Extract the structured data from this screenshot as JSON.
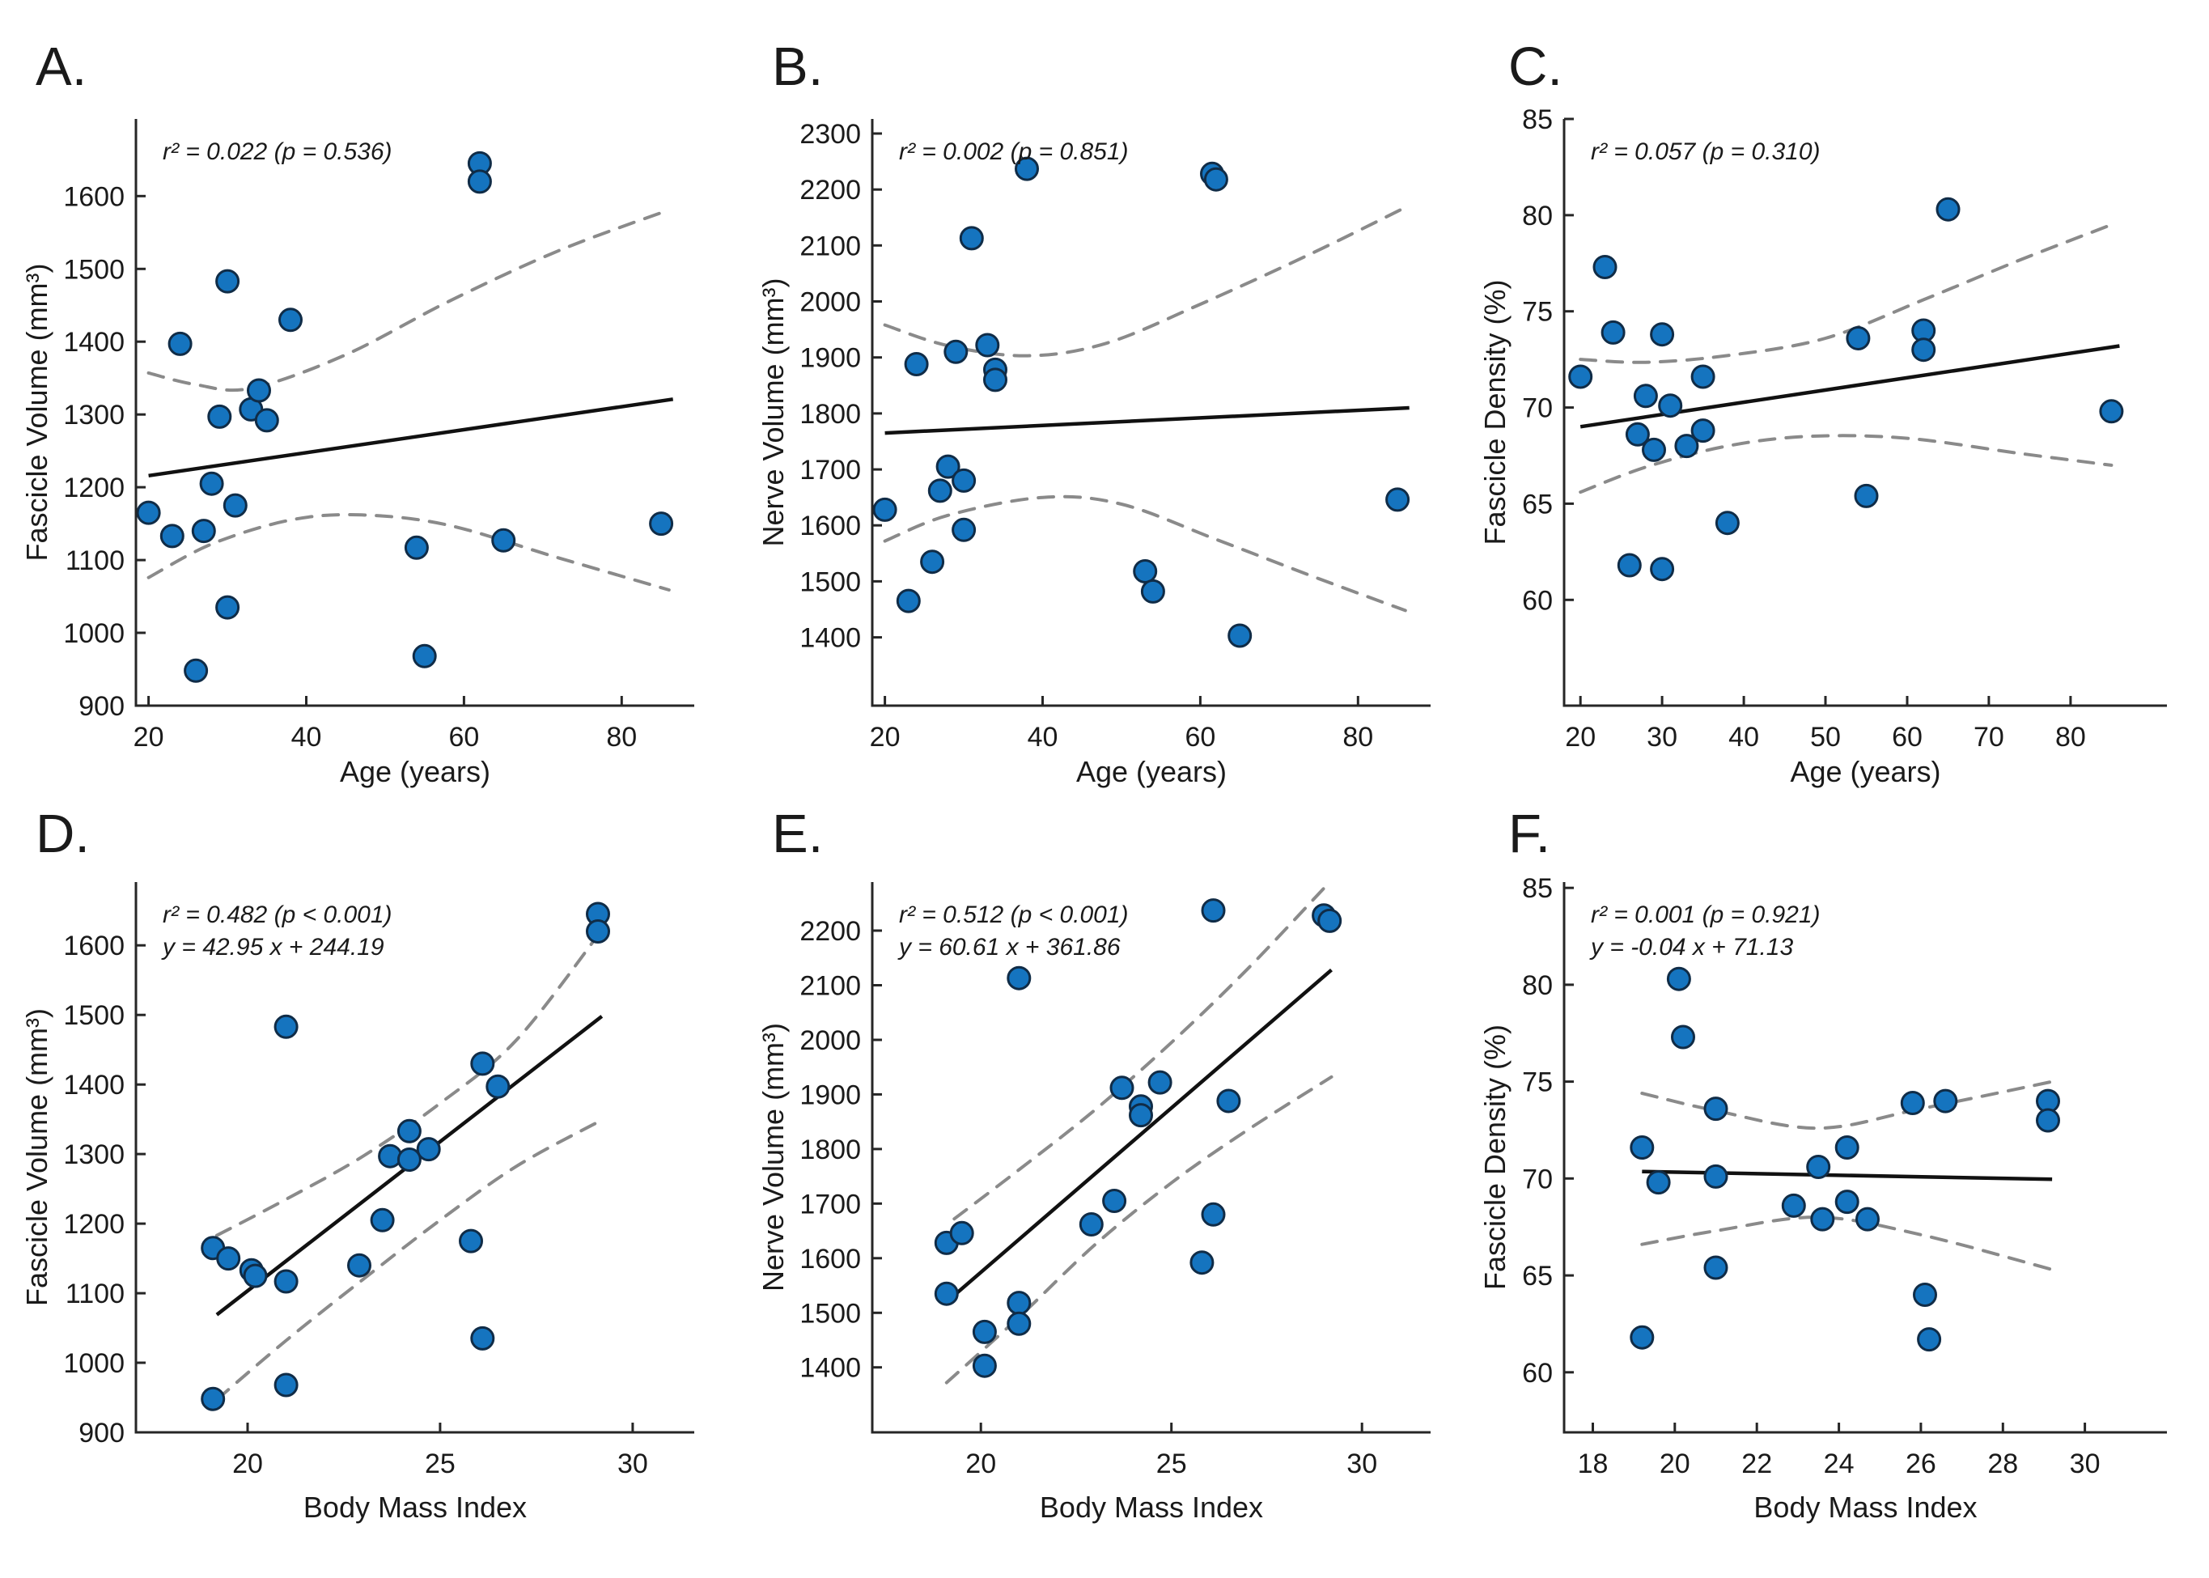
{
  "style": {
    "background": "#ffffff",
    "marker_fill": "#1574bf",
    "marker_edge": "#102c47",
    "fit_line_color": "#111111",
    "ci_line_color": "#8a8a8a",
    "axis_color": "#262626",
    "text_color": "#1a1a1a"
  },
  "chart_data": [
    {
      "type": "scatter",
      "panel_letter": "A.",
      "annotation_lines": [
        "r² = 0.022 (p = 0.536)"
      ],
      "xlabel": "Age (years)",
      "ylabel": "Fascicle Volume (mm³)",
      "xlim": [
        18.4,
        89.2
      ],
      "ylim": [
        900,
        1706
      ],
      "xticks": [
        20,
        40,
        60,
        80
      ],
      "yticks": [
        900,
        1000,
        1100,
        1200,
        1300,
        1400,
        1500,
        1600
      ],
      "points": [
        [
          20,
          1165
        ],
        [
          23,
          1133
        ],
        [
          24,
          1397
        ],
        [
          26,
          948
        ],
        [
          27,
          1140
        ],
        [
          28,
          1205
        ],
        [
          29,
          1297
        ],
        [
          30,
          1483
        ],
        [
          30,
          1035
        ],
        [
          31,
          1175
        ],
        [
          33,
          1307
        ],
        [
          34,
          1333
        ],
        [
          35,
          1292
        ],
        [
          38,
          1430
        ],
        [
          54,
          1117
        ],
        [
          55,
          968
        ],
        [
          62,
          1645
        ],
        [
          62,
          1620
        ],
        [
          65,
          1127
        ],
        [
          85,
          1150
        ]
      ],
      "fit_line": {
        "x": [
          20,
          86.5
        ],
        "y": [
          1216,
          1321
        ]
      },
      "ci_upper": [
        [
          20,
          1357
        ],
        [
          26,
          1341
        ],
        [
          33,
          1336
        ],
        [
          45,
          1382
        ],
        [
          58,
          1455
        ],
        [
          72,
          1525
        ],
        [
          86,
          1581
        ]
      ],
      "ci_lower": [
        [
          20,
          1076
        ],
        [
          28,
          1122
        ],
        [
          38,
          1155
        ],
        [
          47,
          1162
        ],
        [
          58,
          1148
        ],
        [
          72,
          1103
        ],
        [
          86,
          1059
        ]
      ]
    },
    {
      "type": "scatter",
      "panel_letter": "B.",
      "annotation_lines": [
        "r² = 0.002 (p = 0.851)"
      ],
      "xlabel": "Age (years)",
      "ylabel": "Nerve Volume (mm³)",
      "xlim": [
        18.4,
        89.2
      ],
      "ylim": [
        1278,
        2326
      ],
      "xticks": [
        20,
        40,
        60,
        80
      ],
      "yticks": [
        1400,
        1500,
        1600,
        1700,
        1800,
        1900,
        2000,
        2100,
        2200,
        2300
      ],
      "points": [
        [
          20,
          1628
        ],
        [
          23,
          1465
        ],
        [
          24,
          1888
        ],
        [
          26,
          1535
        ],
        [
          27,
          1662
        ],
        [
          28,
          1705
        ],
        [
          29,
          1910
        ],
        [
          30,
          1680
        ],
        [
          30,
          1592
        ],
        [
          31,
          2113
        ],
        [
          33,
          1922
        ],
        [
          34,
          1878
        ],
        [
          34,
          1860
        ],
        [
          38,
          2237
        ],
        [
          53,
          1518
        ],
        [
          54,
          1482
        ],
        [
          61.5,
          2228
        ],
        [
          62,
          2218
        ],
        [
          65,
          1403
        ],
        [
          85,
          1646
        ]
      ],
      "fit_line": {
        "x": [
          20,
          86.5
        ],
        "y": [
          1765,
          1810
        ]
      },
      "ci_upper": [
        [
          20,
          1958
        ],
        [
          28,
          1921
        ],
        [
          38,
          1903
        ],
        [
          48,
          1925
        ],
        [
          60,
          1995
        ],
        [
          74,
          2085
        ],
        [
          86,
          2168
        ]
      ],
      "ci_lower": [
        [
          20,
          1572
        ],
        [
          28,
          1618
        ],
        [
          40,
          1650
        ],
        [
          50,
          1638
        ],
        [
          62,
          1575
        ],
        [
          75,
          1505
        ],
        [
          86,
          1448
        ]
      ]
    },
    {
      "type": "scatter",
      "panel_letter": "C.",
      "annotation_lines": [
        "r² = 0.057 (p = 0.310)"
      ],
      "xlabel": "Age (years)",
      "ylabel": "Fascicle Density (%)",
      "xlim": [
        18,
        91.8
      ],
      "ylim": [
        54.5,
        85
      ],
      "xticks": [
        20,
        30,
        40,
        50,
        60,
        70,
        80
      ],
      "yticks": [
        60,
        65,
        70,
        75,
        80,
        85
      ],
      "points": [
        [
          20,
          71.6
        ],
        [
          23,
          77.3
        ],
        [
          24,
          73.9
        ],
        [
          26,
          61.8
        ],
        [
          27,
          68.6
        ],
        [
          28,
          70.6
        ],
        [
          29,
          67.8
        ],
        [
          30,
          73.8
        ],
        [
          30,
          61.6
        ],
        [
          31,
          70.1
        ],
        [
          33,
          68.0
        ],
        [
          35,
          71.6
        ],
        [
          35,
          68.8
        ],
        [
          38,
          64.0
        ],
        [
          54,
          73.6
        ],
        [
          55,
          65.4
        ],
        [
          62,
          74.0
        ],
        [
          62,
          73.0
        ],
        [
          65,
          80.3
        ],
        [
          85,
          69.8
        ]
      ],
      "fit_line": {
        "x": [
          20,
          86
        ],
        "y": [
          69.0,
          73.2
        ]
      },
      "ci_upper": [
        [
          20,
          72.5
        ],
        [
          28,
          72.35
        ],
        [
          38,
          72.7
        ],
        [
          50,
          73.6
        ],
        [
          62,
          75.6
        ],
        [
          74,
          77.7
        ],
        [
          85,
          79.5
        ]
      ],
      "ci_lower": [
        [
          20,
          65.6
        ],
        [
          28,
          66.9
        ],
        [
          38,
          68.0
        ],
        [
          48,
          68.5
        ],
        [
          60,
          68.4
        ],
        [
          74,
          67.6
        ],
        [
          85,
          67.0
        ]
      ]
    },
    {
      "type": "scatter",
      "panel_letter": "D.",
      "annotation_lines": [
        "r² = 0.482 (p < 0.001)",
        "y = 42.95 x + 244.19"
      ],
      "xlabel": "Body Mass Index",
      "ylabel": "Fascicle Volume (mm³)",
      "xlim": [
        17.1,
        31.6
      ],
      "ylim": [
        900,
        1691
      ],
      "xticks": [
        20,
        25,
        30
      ],
      "yticks": [
        900,
        1000,
        1100,
        1200,
        1300,
        1400,
        1500,
        1600
      ],
      "points": [
        [
          19.1,
          1165
        ],
        [
          19.1,
          948
        ],
        [
          19.5,
          1150
        ],
        [
          20.1,
          1133
        ],
        [
          20.2,
          1125
        ],
        [
          21,
          1483
        ],
        [
          21,
          1117
        ],
        [
          21,
          968
        ],
        [
          22.9,
          1140
        ],
        [
          23.5,
          1205
        ],
        [
          23.7,
          1297
        ],
        [
          24.2,
          1333
        ],
        [
          24.2,
          1292
        ],
        [
          24.7,
          1307
        ],
        [
          25.8,
          1175
        ],
        [
          26.1,
          1430
        ],
        [
          26.1,
          1035
        ],
        [
          26.5,
          1397
        ],
        [
          29.1,
          1645
        ],
        [
          29.1,
          1620
        ]
      ],
      "fit_line": {
        "x": [
          19.2,
          29.2
        ],
        "y": [
          1069,
          1498
        ]
      },
      "ci_upper": [
        [
          19.2,
          1183
        ],
        [
          21,
          1235
        ],
        [
          23,
          1297
        ],
        [
          25,
          1373
        ],
        [
          27,
          1465
        ],
        [
          29.2,
          1622
        ]
      ],
      "ci_lower": [
        [
          19.2,
          947
        ],
        [
          21,
          1032
        ],
        [
          23,
          1120
        ],
        [
          25,
          1205
        ],
        [
          27,
          1283
        ],
        [
          29.2,
          1349
        ]
      ]
    },
    {
      "type": "scatter",
      "panel_letter": "E.",
      "annotation_lines": [
        "r² = 0.512 (p < 0.001)",
        "y = 60.61 x + 361.86"
      ],
      "xlabel": "Body Mass Index",
      "ylabel": "Nerve Volume (mm³)",
      "xlim": [
        17.15,
        31.8
      ],
      "ylim": [
        1281,
        2289
      ],
      "xticks": [
        20,
        25,
        30
      ],
      "yticks": [
        1400,
        1500,
        1600,
        1700,
        1800,
        1900,
        2000,
        2100,
        2200
      ],
      "points": [
        [
          19.1,
          1628
        ],
        [
          19.1,
          1535
        ],
        [
          19.5,
          1646
        ],
        [
          20.1,
          1465
        ],
        [
          20.1,
          1403
        ],
        [
          21,
          2113
        ],
        [
          21,
          1518
        ],
        [
          21,
          1480
        ],
        [
          22.9,
          1662
        ],
        [
          23.5,
          1705
        ],
        [
          23.7,
          1912
        ],
        [
          24.2,
          1878
        ],
        [
          24.2,
          1862
        ],
        [
          24.7,
          1922
        ],
        [
          25.8,
          1592
        ],
        [
          26.1,
          2237
        ],
        [
          26.1,
          1680
        ],
        [
          26.5,
          1888
        ],
        [
          29.0,
          2228
        ],
        [
          29.15,
          2218
        ]
      ],
      "fit_line": {
        "x": [
          19.1,
          29.2
        ],
        "y": [
          1520,
          2128
        ]
      },
      "ci_upper": [
        [
          19.3,
          1672
        ],
        [
          21,
          1762
        ],
        [
          23,
          1872
        ],
        [
          25,
          1995
        ],
        [
          27,
          2130
        ],
        [
          29.1,
          2285
        ]
      ],
      "ci_lower": [
        [
          19.1,
          1372
        ],
        [
          21,
          1492
        ],
        [
          23,
          1625
        ],
        [
          25,
          1738
        ],
        [
          27,
          1835
        ],
        [
          29.2,
          1932
        ]
      ]
    },
    {
      "type": "scatter",
      "panel_letter": "F.",
      "annotation_lines": [
        "r² = 0.001 (p = 0.921)",
        "y = -0.04 x + 71.13"
      ],
      "xlabel": "Body Mass Index",
      "ylabel": "Fascicle Density (%)",
      "xlim": [
        17.3,
        32.0
      ],
      "ylim": [
        56.9,
        85.3
      ],
      "xticks": [
        18,
        20,
        22,
        24,
        26,
        28,
        30
      ],
      "yticks": [
        60,
        65,
        70,
        75,
        80,
        85
      ],
      "points": [
        [
          19.2,
          71.6
        ],
        [
          19.2,
          61.8
        ],
        [
          19.6,
          69.8
        ],
        [
          20.1,
          80.3
        ],
        [
          20.2,
          77.3
        ],
        [
          21,
          73.6
        ],
        [
          21,
          70.1
        ],
        [
          21,
          65.4
        ],
        [
          22.9,
          68.6
        ],
        [
          23.5,
          70.6
        ],
        [
          23.6,
          67.9
        ],
        [
          24.2,
          71.6
        ],
        [
          24.2,
          68.8
        ],
        [
          24.7,
          67.9
        ],
        [
          25.8,
          73.9
        ],
        [
          26.1,
          64.0
        ],
        [
          26.2,
          61.7
        ],
        [
          26.6,
          74.0
        ],
        [
          29.1,
          74.0
        ],
        [
          29.1,
          73.0
        ]
      ],
      "fit_line": {
        "x": [
          19.2,
          29.2
        ],
        "y": [
          70.36,
          69.96
        ]
      },
      "ci_upper": [
        [
          19.2,
          74.4
        ],
        [
          21,
          73.5
        ],
        [
          23.5,
          72.6
        ],
        [
          26,
          73.6
        ],
        [
          29.2,
          75.0
        ]
      ],
      "ci_lower": [
        [
          19.2,
          66.6
        ],
        [
          21,
          67.3
        ],
        [
          23.5,
          68.0
        ],
        [
          26,
          67.1
        ],
        [
          29.2,
          65.3
        ]
      ]
    }
  ]
}
